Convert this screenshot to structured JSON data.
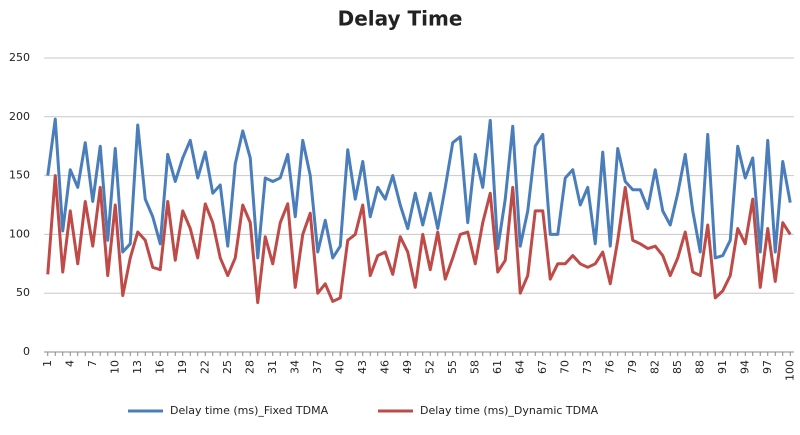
{
  "chart_data": {
    "type": "line",
    "title": "Delay Time",
    "categories": [
      "1",
      null,
      null,
      "4",
      null,
      null,
      "7",
      null,
      null,
      "10",
      null,
      null,
      "13",
      null,
      null,
      "16",
      null,
      null,
      "19",
      null,
      null,
      "22",
      null,
      null,
      "25",
      null,
      null,
      "28",
      null,
      null,
      "31",
      null,
      null,
      "34",
      null,
      null,
      "37",
      null,
      null,
      "40",
      null,
      null,
      "43",
      null,
      null,
      "46",
      null,
      null,
      "49",
      null,
      null,
      "52",
      null,
      null,
      "55",
      null,
      null,
      "58",
      null,
      null,
      "61",
      null,
      null,
      "64",
      null,
      null,
      "67",
      null,
      null,
      "70",
      null,
      null,
      "73",
      null,
      null,
      "76",
      null,
      null,
      "79",
      null,
      null,
      "82",
      null,
      null,
      "85",
      null,
      null,
      "88",
      null,
      null,
      "91",
      null,
      null,
      "94",
      null,
      null,
      "97",
      null,
      null,
      "100"
    ],
    "series": [
      {
        "name": "Delay time (ms)_Fixed TDMA",
        "color": "#4a7ebb",
        "values": [
          150,
          198,
          103,
          155,
          140,
          178,
          128,
          175,
          95,
          173,
          85,
          92,
          193,
          130,
          115,
          92,
          168,
          145,
          165,
          180,
          148,
          170,
          135,
          142,
          90,
          160,
          188,
          165,
          80,
          148,
          145,
          148,
          168,
          115,
          180,
          150,
          85,
          112,
          80,
          90,
          172,
          130,
          162,
          115,
          140,
          130,
          150,
          125,
          105,
          135,
          108,
          135,
          105,
          140,
          178,
          183,
          110,
          168,
          140,
          197,
          88,
          130,
          192,
          90,
          120,
          175,
          185,
          100,
          100,
          148,
          155,
          125,
          140,
          92,
          170,
          90,
          173,
          145,
          138,
          138,
          122,
          155,
          120,
          108,
          135,
          168,
          120,
          85,
          185,
          80,
          82,
          95,
          175,
          148,
          165,
          85,
          180,
          85,
          162,
          127
        ]
      },
      {
        "name": "Delay time (ms)_Dynamic TDMA",
        "color": "#be4b48",
        "values": [
          66,
          150,
          68,
          120,
          75,
          128,
          90,
          140,
          65,
          125,
          48,
          80,
          102,
          95,
          72,
          70,
          128,
          78,
          120,
          105,
          80,
          126,
          110,
          80,
          65,
          80,
          125,
          110,
          42,
          98,
          75,
          110,
          126,
          55,
          100,
          118,
          50,
          58,
          43,
          46,
          95,
          100,
          125,
          65,
          82,
          85,
          66,
          98,
          85,
          55,
          100,
          70,
          102,
          62,
          80,
          100,
          102,
          75,
          110,
          135,
          68,
          78,
          140,
          50,
          65,
          120,
          120,
          62,
          75,
          75,
          82,
          75,
          72,
          75,
          85,
          58,
          95,
          140,
          95,
          92,
          88,
          90,
          82,
          65,
          80,
          102,
          68,
          65,
          108,
          46,
          52,
          65,
          105,
          92,
          130,
          55,
          105,
          60,
          110,
          100
        ]
      }
    ],
    "ylim": [
      0,
      250
    ],
    "yticks": [
      0,
      50,
      100,
      150,
      200,
      250
    ],
    "grid": true,
    "legend": "bottom"
  }
}
